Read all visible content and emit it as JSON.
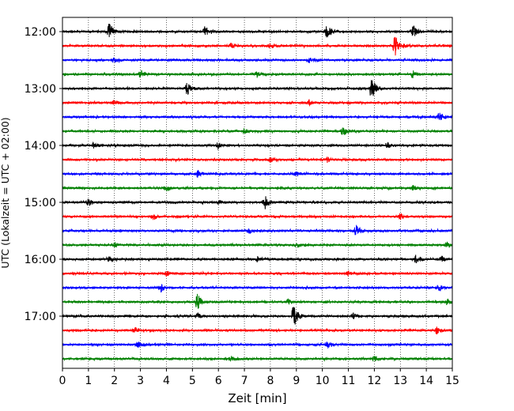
{
  "chart_data": {
    "type": "line",
    "title": "",
    "xlabel": "Zeit  [min]",
    "ylabel": "UTC (Lokalzeit = UTC + 02:00)",
    "xlim": [
      0,
      15
    ],
    "x_ticks": [
      "0",
      "1",
      "2",
      "3",
      "4",
      "5",
      "6",
      "7",
      "8",
      "9",
      "10",
      "11",
      "12",
      "13",
      "14",
      "15"
    ],
    "grid": "vertical dotted",
    "row_interval_minutes": 15,
    "y_ticks": [
      {
        "label": "12:00",
        "row": 0
      },
      {
        "label": "13:00",
        "row": 4
      },
      {
        "label": "14:00",
        "row": 8
      },
      {
        "label": "15:00",
        "row": 12
      },
      {
        "label": "16:00",
        "row": 16
      },
      {
        "label": "17:00",
        "row": 20
      }
    ],
    "colors": [
      "#000000",
      "#ff0000",
      "#0000ff",
      "#008000"
    ],
    "traces": [
      {
        "start": "12:00",
        "color": "#000000",
        "events": [
          [
            1.8,
            1.0
          ],
          [
            5.5,
            0.6
          ],
          [
            10.2,
            1.0
          ],
          [
            13.5,
            0.7
          ]
        ]
      },
      {
        "start": "12:15",
        "color": "#ff0000",
        "events": [
          [
            6.5,
            0.4
          ],
          [
            8.0,
            0.4
          ],
          [
            12.8,
            1.4
          ]
        ]
      },
      {
        "start": "12:30",
        "color": "#0000ff",
        "events": [
          [
            2.0,
            0.3
          ],
          [
            9.5,
            0.3
          ]
        ]
      },
      {
        "start": "12:45",
        "color": "#008000",
        "events": [
          [
            3.0,
            0.5
          ],
          [
            7.5,
            0.3
          ],
          [
            13.5,
            0.5
          ]
        ]
      },
      {
        "start": "13:00",
        "color": "#000000",
        "events": [
          [
            4.8,
            0.8
          ],
          [
            11.9,
            1.6
          ]
        ]
      },
      {
        "start": "13:15",
        "color": "#ff0000",
        "events": [
          [
            2.0,
            0.3
          ],
          [
            9.5,
            0.3
          ]
        ]
      },
      {
        "start": "13:30",
        "color": "#0000ff",
        "events": [
          [
            14.5,
            0.5
          ]
        ]
      },
      {
        "start": "13:45",
        "color": "#008000",
        "events": [
          [
            10.8,
            0.6
          ],
          [
            7.0,
            0.3
          ]
        ]
      },
      {
        "start": "14:00",
        "color": "#000000",
        "events": [
          [
            1.2,
            0.3
          ],
          [
            6.0,
            0.3
          ],
          [
            12.5,
            0.3
          ]
        ]
      },
      {
        "start": "14:15",
        "color": "#ff0000",
        "events": [
          [
            8.0,
            0.3
          ],
          [
            10.2,
            0.3
          ]
        ]
      },
      {
        "start": "14:30",
        "color": "#0000ff",
        "events": [
          [
            5.2,
            0.5
          ],
          [
            9.0,
            0.3
          ]
        ]
      },
      {
        "start": "14:45",
        "color": "#008000",
        "events": [
          [
            4.0,
            0.3
          ],
          [
            13.5,
            0.3
          ]
        ]
      },
      {
        "start": "15:00",
        "color": "#000000",
        "events": [
          [
            1.0,
            0.4
          ],
          [
            6.0,
            0.4
          ],
          [
            7.8,
            0.8
          ]
        ]
      },
      {
        "start": "15:15",
        "color": "#ff0000",
        "events": [
          [
            3.5,
            0.3
          ],
          [
            13.0,
            0.3
          ]
        ]
      },
      {
        "start": "15:30",
        "color": "#0000ff",
        "events": [
          [
            7.2,
            0.3
          ],
          [
            11.3,
            0.7
          ]
        ]
      },
      {
        "start": "15:45",
        "color": "#008000",
        "events": [
          [
            2.0,
            0.3
          ],
          [
            9.0,
            0.3
          ],
          [
            14.8,
            0.3
          ]
        ]
      },
      {
        "start": "16:00",
        "color": "#000000",
        "events": [
          [
            1.8,
            0.3
          ],
          [
            7.5,
            0.3
          ],
          [
            13.6,
            0.5
          ],
          [
            14.6,
            0.3
          ]
        ]
      },
      {
        "start": "16:15",
        "color": "#ff0000",
        "events": [
          [
            4.0,
            0.3
          ],
          [
            11.0,
            0.3
          ]
        ]
      },
      {
        "start": "16:30",
        "color": "#0000ff",
        "events": [
          [
            3.8,
            0.5
          ],
          [
            14.5,
            0.4
          ]
        ]
      },
      {
        "start": "16:45",
        "color": "#008000",
        "events": [
          [
            5.2,
            1.0
          ],
          [
            8.7,
            0.3
          ],
          [
            14.8,
            0.3
          ]
        ]
      },
      {
        "start": "17:00",
        "color": "#000000",
        "events": [
          [
            8.9,
            1.5
          ],
          [
            5.2,
            0.3
          ],
          [
            11.2,
            0.3
          ]
        ]
      },
      {
        "start": "17:15",
        "color": "#ff0000",
        "events": [
          [
            2.8,
            0.3
          ],
          [
            14.4,
            0.4
          ]
        ]
      },
      {
        "start": "17:30",
        "color": "#0000ff",
        "events": [
          [
            2.9,
            0.4
          ],
          [
            10.2,
            0.4
          ]
        ]
      },
      {
        "start": "17:45",
        "color": "#008000",
        "events": [
          [
            6.5,
            0.3
          ],
          [
            12.0,
            0.3
          ]
        ]
      }
    ]
  }
}
